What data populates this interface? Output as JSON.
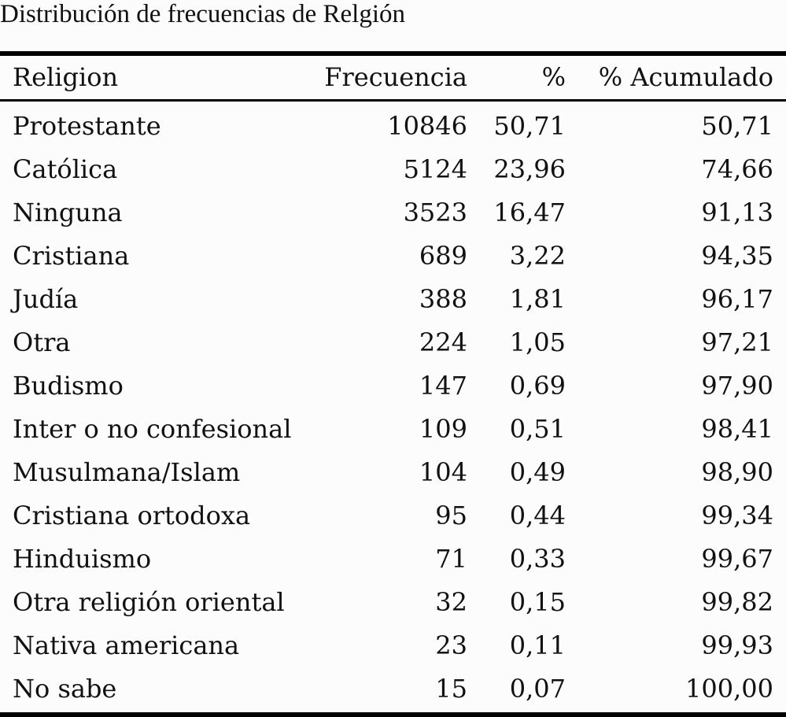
{
  "caption": "Distribución de frecuencias de Relgión",
  "columns": [
    "Religion",
    "Frecuencia",
    "%",
    "% Acumulado"
  ],
  "rows": [
    [
      "Protestante",
      "10846",
      "50,71",
      "50,71"
    ],
    [
      "Católica",
      "5124",
      "23,96",
      "74,66"
    ],
    [
      "Ninguna",
      "3523",
      "16,47",
      "91,13"
    ],
    [
      "Cristiana",
      "689",
      "3,22",
      "94,35"
    ],
    [
      "Judía",
      "388",
      "1,81",
      "96,17"
    ],
    [
      "Otra",
      "224",
      "1,05",
      "97,21"
    ],
    [
      "Budismo",
      "147",
      "0,69",
      "97,90"
    ],
    [
      "Inter o no confesional",
      "109",
      "0,51",
      "98,41"
    ],
    [
      "Musulmana/Islam",
      "104",
      "0,49",
      "98,90"
    ],
    [
      "Cristiana ortodoxa",
      "95",
      "0,44",
      "99,34"
    ],
    [
      "Hinduismo",
      "71",
      "0,33",
      "99,67"
    ],
    [
      "Otra religión oriental",
      "32",
      "0,15",
      "99,82"
    ],
    [
      "Nativa americana",
      "23",
      "0,11",
      "99,93"
    ],
    [
      "No sabe",
      "15",
      "0,07",
      "100,00"
    ]
  ]
}
